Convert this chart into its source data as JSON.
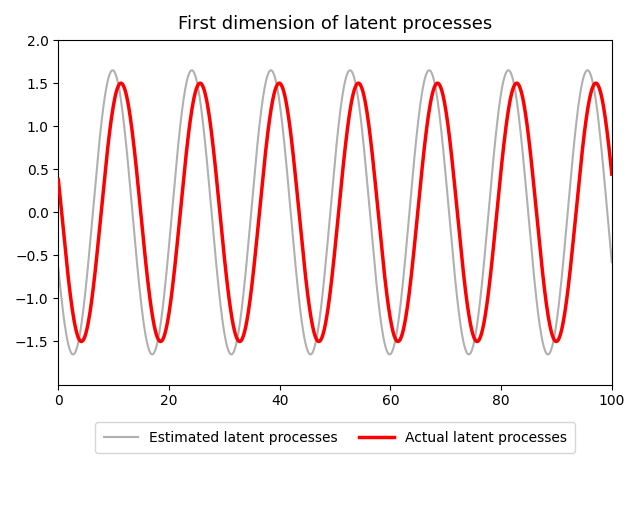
{
  "title": "First dimension of latent processes",
  "xlim": [
    0,
    100
  ],
  "ylim": [
    -2.0,
    2.0
  ],
  "xticks": [
    0,
    20,
    40,
    60,
    80,
    100
  ],
  "yticks": [
    -1.5,
    -1.0,
    -0.5,
    0.0,
    0.5,
    1.0,
    1.5,
    2.0
  ],
  "actual_color": "#ff0000",
  "estimated_color": "#b0b0b0",
  "actual_linewidth": 2.5,
  "estimated_linewidth": 1.5,
  "actual_label": "Actual latent processes",
  "estimated_label": "Estimated latent processes",
  "legend_ncol": 2,
  "legend_frameon": true,
  "background_color": "#ffffff",
  "n_points": 1000,
  "actual_amplitude": 1.5,
  "period": 14.3,
  "actual_phase_deg": 15.0,
  "estimated_amplitude": 1.65,
  "estimated_phase_lead": 1.5,
  "figwidth": 6.4,
  "figheight": 5.2,
  "dpi": 100
}
